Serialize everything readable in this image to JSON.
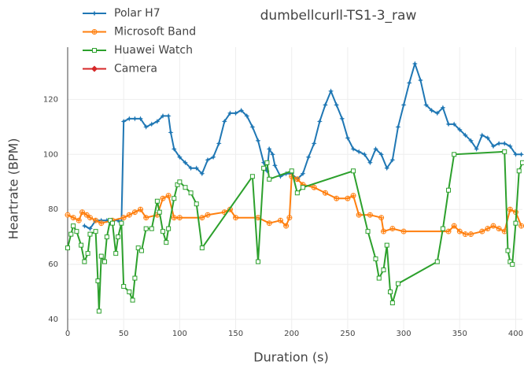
{
  "chart_data": {
    "type": "line",
    "title": "dumbellcurll-TS1-3_raw",
    "x_label": "Duration (s)",
    "y_label": "Heartrate (BPM)",
    "xlim": [
      0,
      406
    ],
    "ylim": [
      36,
      139
    ],
    "xticks": [
      0,
      50,
      100,
      150,
      200,
      250,
      300,
      350,
      400
    ],
    "yticks": [
      40,
      60,
      80,
      100,
      120
    ],
    "grid": true,
    "legend": "top-left",
    "series": [
      {
        "name": "Polar H7",
        "color": "#1f77b4",
        "marker": "star",
        "x": [
          15,
          20,
          25,
          30,
          35,
          40,
          45,
          48,
          50,
          55,
          60,
          65,
          70,
          75,
          80,
          85,
          90,
          92,
          95,
          100,
          105,
          110,
          115,
          120,
          125,
          130,
          135,
          140,
          145,
          150,
          155,
          160,
          165,
          170,
          175,
          178,
          180,
          183,
          185,
          190,
          195,
          200,
          205,
          210,
          215,
          220,
          225,
          230,
          235,
          240,
          245,
          250,
          255,
          260,
          265,
          270,
          275,
          280,
          285,
          290,
          295,
          300,
          305,
          310,
          315,
          320,
          325,
          330,
          335,
          340,
          345,
          350,
          355,
          360,
          365,
          370,
          375,
          380,
          385,
          390,
          395,
          400,
          405
        ],
        "values": [
          74,
          73,
          76,
          76,
          76,
          76,
          76,
          75,
          112,
          113,
          113,
          113,
          110,
          111,
          112,
          114,
          114,
          108,
          102,
          99,
          97,
          95,
          95,
          93,
          98,
          99,
          104,
          112,
          115,
          115,
          116,
          114,
          110,
          105,
          97,
          94,
          102,
          100,
          96,
          92,
          93,
          93,
          91,
          93,
          99,
          104,
          112,
          118,
          123,
          118,
          113,
          106,
          102,
          101,
          100,
          97,
          102,
          100,
          95,
          98,
          110,
          118,
          126,
          133,
          127,
          118,
          116,
          115,
          117,
          111,
          111,
          109,
          107,
          105,
          102,
          107,
          106,
          103,
          104,
          104,
          103,
          100,
          100
        ]
      },
      {
        "name": "Microsoft Band",
        "color": "#ff7f0e",
        "marker": "circle-cross",
        "x": [
          0,
          5,
          10,
          13,
          17,
          20,
          25,
          30,
          40,
          50,
          55,
          60,
          65,
          70,
          80,
          85,
          90,
          95,
          100,
          120,
          125,
          140,
          145,
          150,
          170,
          180,
          190,
          195,
          198,
          200,
          205,
          210,
          220,
          230,
          240,
          250,
          255,
          260,
          270,
          280,
          282,
          290,
          300,
          340,
          345,
          350,
          355,
          360,
          370,
          375,
          380,
          385,
          390,
          395,
          400,
          405
        ],
        "values": [
          78,
          77,
          76,
          79,
          78,
          77,
          76,
          75,
          76,
          77,
          78,
          79,
          80,
          77,
          78,
          84,
          85,
          77,
          77,
          77,
          78,
          79,
          80,
          77,
          77,
          75,
          76,
          74,
          77,
          92,
          91,
          89,
          88,
          86,
          84,
          84,
          85,
          78,
          78,
          77,
          72,
          73,
          72,
          72,
          74,
          72,
          71,
          71,
          72,
          73,
          74,
          73,
          72,
          80,
          79,
          74
        ]
      },
      {
        "name": "Huawei Watch",
        "color": "#2ca02c",
        "marker": "square-open",
        "x": [
          0,
          3,
          5,
          8,
          12,
          15,
          18,
          20,
          25,
          27,
          28,
          30,
          33,
          35,
          38,
          40,
          43,
          45,
          48,
          50,
          55,
          58,
          60,
          63,
          66,
          70,
          75,
          80,
          82,
          85,
          88,
          90,
          95,
          98,
          100,
          105,
          110,
          115,
          120,
          165,
          170,
          175,
          178,
          180,
          200,
          205,
          210,
          255,
          268,
          275,
          278,
          282,
          285,
          288,
          290,
          295,
          330,
          335,
          340,
          345,
          390,
          393,
          395,
          397,
          400,
          403,
          406
        ],
        "values": [
          66,
          71,
          74,
          72,
          67,
          61,
          64,
          71,
          72,
          54,
          43,
          63,
          61,
          70,
          76,
          75,
          64,
          70,
          75,
          52,
          50,
          47,
          55,
          66,
          65,
          73,
          73,
          83,
          79,
          72,
          68,
          73,
          84,
          89,
          90,
          88,
          86,
          82,
          66,
          92,
          61,
          95,
          97,
          91,
          94,
          86,
          88,
          94,
          72,
          62,
          55,
          58,
          67,
          50,
          46,
          53,
          61,
          73,
          87,
          100,
          101,
          65,
          61,
          60,
          75,
          94,
          97
        ]
      },
      {
        "name": "Camera",
        "color": "#d62728",
        "marker": "diamond",
        "x": [],
        "values": []
      }
    ]
  }
}
